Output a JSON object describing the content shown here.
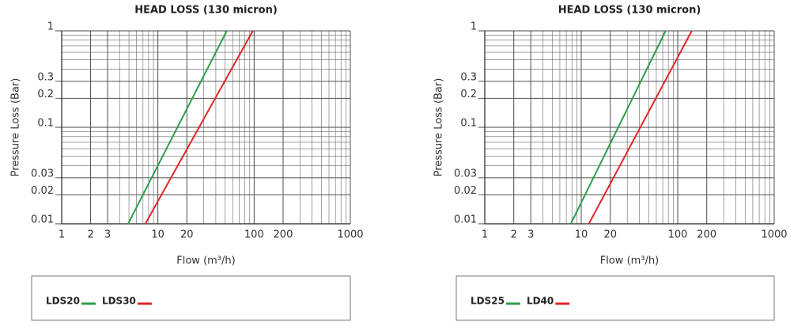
{
  "chart_data": [
    {
      "type": "line",
      "title": "HEAD LOSS (130 micron)",
      "x_label": "Flow (m³/h)",
      "y_label": "Pressure Loss (Bar)",
      "xscale": "log",
      "yscale": "log",
      "grid": true,
      "minor_grid": true,
      "legend": "bottom",
      "xlim": [
        1,
        1000
      ],
      "ylim": [
        0.01,
        1
      ],
      "xticks": [
        1,
        2,
        3,
        10,
        20,
        100,
        200,
        1000
      ],
      "yticks": [
        0.01,
        0.02,
        0.03,
        0.1,
        0.2,
        0.3,
        1
      ],
      "series": [
        {
          "name": "LDS20",
          "color": "#2e9e4a",
          "x": [
            4.9,
            52
          ],
          "values": [
            0.01,
            1
          ]
        },
        {
          "name": "LDS30",
          "color": "#e0262b",
          "x": [
            7.4,
            97
          ],
          "values": [
            0.01,
            1
          ]
        }
      ]
    },
    {
      "type": "line",
      "title": "HEAD LOSS (130 micron)",
      "x_label": "Flow (m³/h)",
      "y_label": "Pressure Loss (Bar)",
      "xscale": "log",
      "yscale": "log",
      "grid": true,
      "minor_grid": true,
      "legend": "bottom",
      "xlim": [
        1,
        1000
      ],
      "ylim": [
        0.01,
        1
      ],
      "xticks": [
        1,
        2,
        3,
        10,
        20,
        100,
        200,
        1000
      ],
      "yticks": [
        0.01,
        0.02,
        0.03,
        0.1,
        0.2,
        0.3,
        1
      ],
      "series": [
        {
          "name": "LDS25",
          "color": "#2e9e4a",
          "x": [
            7.8,
            75
          ],
          "values": [
            0.01,
            1
          ]
        },
        {
          "name": "LD40",
          "color": "#e0262b",
          "x": [
            12,
            140
          ],
          "values": [
            0.01,
            1
          ]
        }
      ]
    }
  ]
}
